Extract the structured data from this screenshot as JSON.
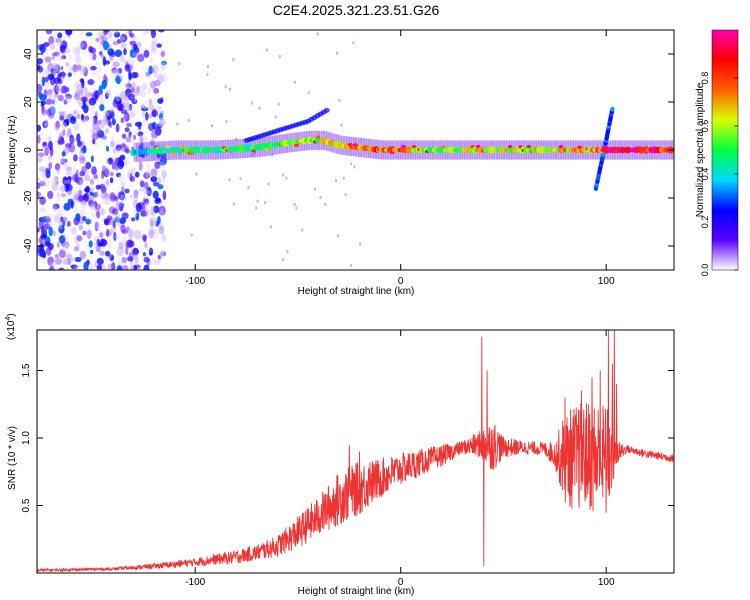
{
  "title": "C2E4.2025.321.23.51.G26",
  "chart_data": [
    {
      "type": "heatmap",
      "name": "spectrogram",
      "xlabel": "Height of straight line (km)",
      "ylabel": "Frequency (Hz)",
      "xlim": [
        -177,
        133
      ],
      "ylim": [
        -50,
        50
      ],
      "xticks": [
        -100,
        0,
        100
      ],
      "xtick_labels": [
        "-100",
        "0",
        "100"
      ],
      "yticks": [
        -40,
        -20,
        0,
        20,
        40
      ],
      "ytick_labels": [
        "-40",
        "-20",
        "0",
        "20",
        "40"
      ],
      "colorbar": {
        "label": "Normalized spectral amplitude",
        "range": [
          0,
          1
        ],
        "ticks": [
          0,
          0.2,
          0.4,
          0.6,
          0.8
        ],
        "tick_labels": [
          "0.0",
          "0.2",
          "0.4",
          "0.6",
          "0.8"
        ],
        "colors": [
          "#ffffff",
          "#5a00ff",
          "#0000ff",
          "#00d8ff",
          "#00ff40",
          "#d8ff00",
          "#ff6000",
          "#ff0000",
          "#ff00aa"
        ]
      },
      "ridge": {
        "x": [
          -130,
          -110,
          -90,
          -70,
          -55,
          -45,
          -38,
          -30,
          -20,
          -10,
          0,
          10,
          20,
          30,
          40,
          50,
          60,
          70,
          80,
          90,
          95,
          100,
          110,
          120,
          133
        ],
        "freq": [
          -1,
          0,
          0,
          1,
          3,
          4,
          4,
          2,
          1,
          0,
          0,
          0,
          0,
          0,
          0,
          0,
          0,
          0,
          0,
          0,
          0,
          0,
          0,
          0,
          0
        ],
        "amplitude": [
          0.4,
          0.45,
          0.5,
          0.5,
          0.55,
          0.55,
          0.6,
          0.7,
          0.75,
          0.8,
          0.75,
          0.6,
          0.55,
          0.6,
          0.65,
          0.6,
          0.6,
          0.65,
          0.7,
          0.7,
          0.75,
          0.95,
          0.95,
          0.9,
          0.85
        ]
      },
      "branch": {
        "x": [
          -75,
          -60,
          -45,
          -35
        ],
        "freq": [
          4,
          8,
          12,
          17
        ]
      },
      "spike": {
        "x": [
          95,
          97,
          100,
          103
        ],
        "freq": [
          -16,
          -8,
          4,
          17
        ]
      },
      "noise_region_x": [
        -177,
        -115
      ]
    },
    {
      "type": "line",
      "name": "snr",
      "color": "#ee3333",
      "xlabel": "Height of straight line (km)",
      "ylabel": "SNR (10 * v/v)",
      "multiplier_label": "(x10",
      "multiplier_exp": "4",
      "xlim": [
        -177,
        133
      ],
      "ylim": [
        0,
        1.8
      ],
      "xticks": [
        -100,
        0,
        100
      ],
      "xtick_labels": [
        "-100",
        "0",
        "100"
      ],
      "yticks": [
        0.5,
        1.0,
        1.5
      ],
      "ytick_labels": [
        "0.5",
        "1.0",
        "1.5"
      ],
      "envelope": {
        "x": [
          -177,
          -140,
          -120,
          -100,
          -90,
          -80,
          -70,
          -60,
          -50,
          -40,
          -30,
          -20,
          -10,
          0,
          10,
          20,
          30,
          38,
          45,
          50,
          60,
          70,
          75,
          80,
          85,
          90,
          95,
          100,
          105,
          110,
          120,
          133
        ],
        "mean": [
          0.02,
          0.03,
          0.05,
          0.08,
          0.1,
          0.12,
          0.15,
          0.2,
          0.3,
          0.42,
          0.55,
          0.63,
          0.7,
          0.77,
          0.82,
          0.87,
          0.93,
          0.95,
          0.95,
          0.93,
          0.93,
          0.92,
          0.88,
          0.85,
          0.85,
          0.88,
          0.85,
          0.82,
          0.88,
          0.92,
          0.88,
          0.85
        ],
        "amplitude": [
          0.01,
          0.01,
          0.02,
          0.03,
          0.04,
          0.05,
          0.06,
          0.08,
          0.12,
          0.15,
          0.2,
          0.2,
          0.15,
          0.12,
          0.1,
          0.08,
          0.05,
          0.1,
          0.2,
          0.08,
          0.05,
          0.05,
          0.1,
          0.35,
          0.4,
          0.4,
          0.45,
          0.45,
          0.1,
          0.03,
          0.03,
          0.03
        ]
      },
      "peaks": {
        "x": [
          -25,
          -20,
          -15,
          39.5,
          40.5,
          42,
          80,
          88,
          93,
          97,
          101,
          103,
          104,
          105
        ],
        "y": [
          0.95,
          0.9,
          0.82,
          1.75,
          0.05,
          1.5,
          1.3,
          1.35,
          1.45,
          1.5,
          1.8,
          1.55,
          1.85,
          1.4
        ]
      }
    }
  ]
}
